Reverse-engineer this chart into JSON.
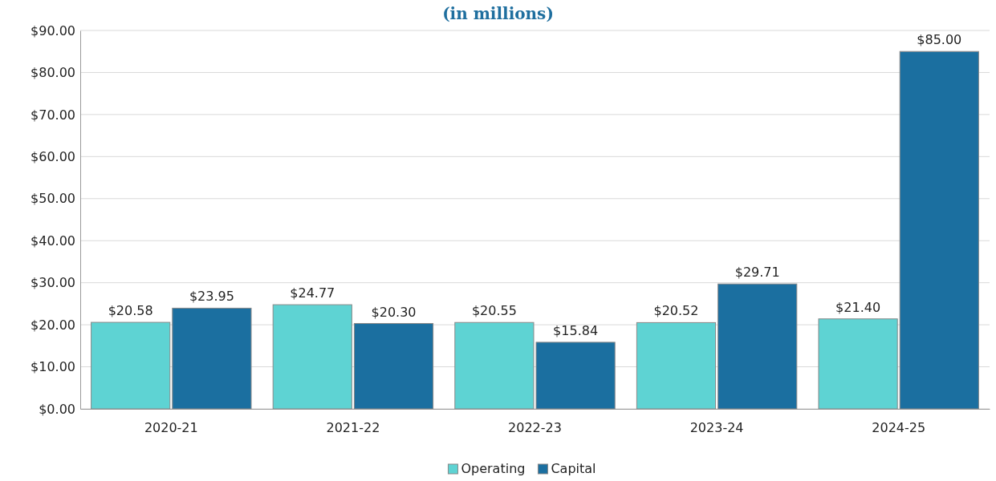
{
  "chart_data": {
    "type": "bar",
    "title": "(in millions)",
    "categories": [
      "2020-21",
      "2021-22",
      "2022-23",
      "2023-24",
      "2024-25"
    ],
    "series": [
      {
        "name": "Operating",
        "color": "#5ed3d3",
        "values": [
          20.58,
          24.77,
          20.55,
          20.52,
          21.4
        ]
      },
      {
        "name": "Capital",
        "color": "#1b6fa0",
        "values": [
          23.95,
          20.3,
          15.84,
          29.71,
          85.0
        ]
      }
    ],
    "ylim": [
      0,
      90
    ],
    "yticks": [
      {
        "value": 0,
        "label": "$0.00"
      },
      {
        "value": 10,
        "label": "$10.00"
      },
      {
        "value": 20,
        "label": "$20.00"
      },
      {
        "value": 30,
        "label": "$30.00"
      },
      {
        "value": 40,
        "label": "$40.00"
      },
      {
        "value": 50,
        "label": "$50.00"
      },
      {
        "value": 60,
        "label": "$60.00"
      },
      {
        "value": 70,
        "label": "$70.00"
      },
      {
        "value": 80,
        "label": "$80.00"
      },
      {
        "value": 90,
        "label": "$90.00"
      }
    ],
    "value_labels": [
      [
        "$20.58",
        "$24.77",
        "$20.55",
        "$20.52",
        "$21.40"
      ],
      [
        "$23.95",
        "$20.30",
        "$15.84",
        "$29.71",
        "$85.00"
      ]
    ],
    "grid": "y",
    "legend": "bottom"
  }
}
